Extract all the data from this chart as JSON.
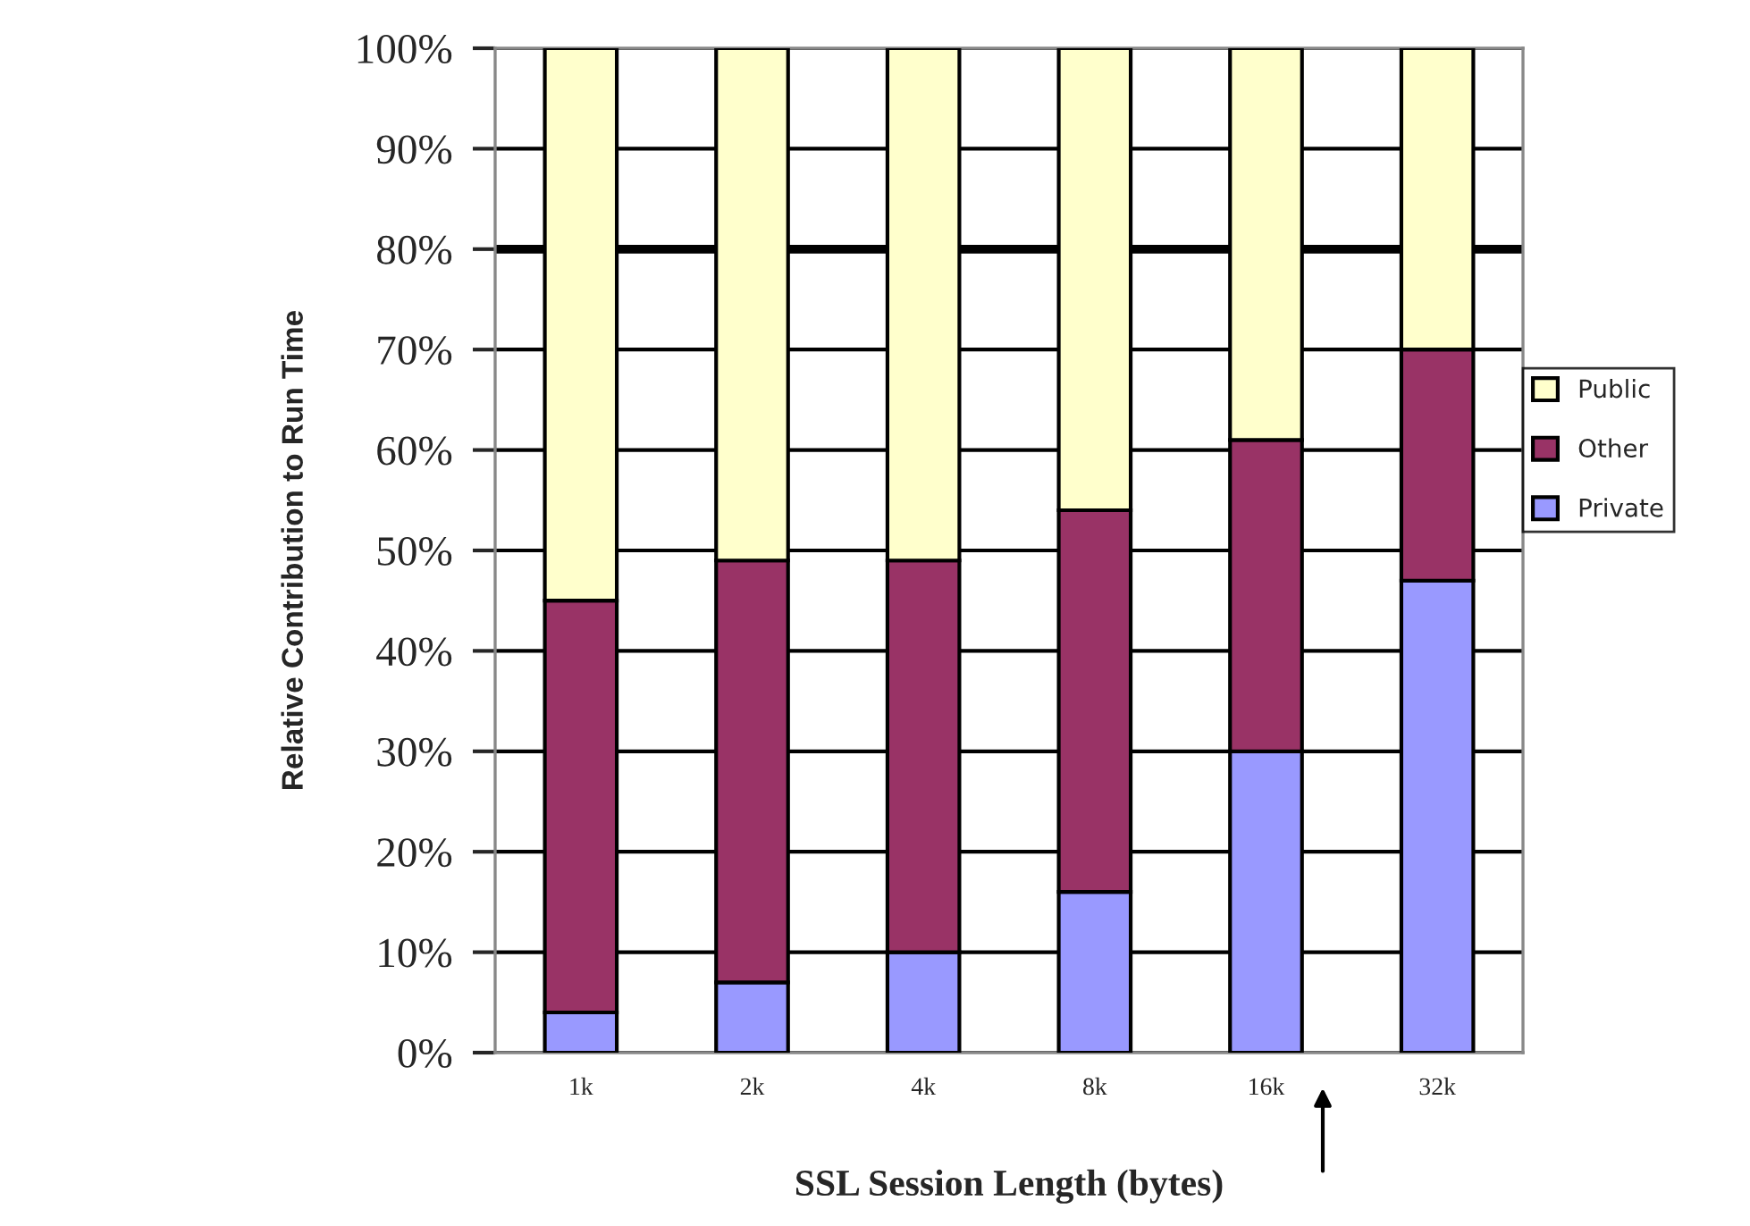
{
  "chart_data": {
    "type": "bar",
    "stacked": true,
    "categories": [
      "1k",
      "2k",
      "4k",
      "8k",
      "16k",
      "32k"
    ],
    "series": [
      {
        "name": "Private",
        "color": "#9999ff",
        "values": [
          4,
          7,
          10,
          16,
          30,
          47
        ]
      },
      {
        "name": "Other",
        "color": "#993366",
        "values": [
          41,
          42,
          39,
          38,
          31,
          23
        ]
      },
      {
        "name": "Public",
        "color": "#ffffcc",
        "values": [
          55,
          51,
          51,
          46,
          39,
          30
        ]
      }
    ],
    "xlabel": "SSL Session Length (bytes)",
    "ylabel": "Relative Contribution to Run Time",
    "ylim": [
      0,
      100
    ],
    "yticks": [
      {
        "value": 0,
        "label": "0%"
      },
      {
        "value": 10,
        "label": "10%"
      },
      {
        "value": 20,
        "label": "20%"
      },
      {
        "value": 30,
        "label": "30%"
      },
      {
        "value": 40,
        "label": "40%"
      },
      {
        "value": 50,
        "label": "50%"
      },
      {
        "value": 60,
        "label": "60%"
      },
      {
        "value": 70,
        "label": "70%"
      },
      {
        "value": 80,
        "label": "80%"
      },
      {
        "value": 90,
        "label": "90%"
      },
      {
        "value": 100,
        "label": "100%"
      }
    ],
    "ref_lines": [
      {
        "axis": "y",
        "value": 80,
        "label": null,
        "color": "#000000"
      }
    ],
    "grid": "y",
    "legend": "right"
  }
}
